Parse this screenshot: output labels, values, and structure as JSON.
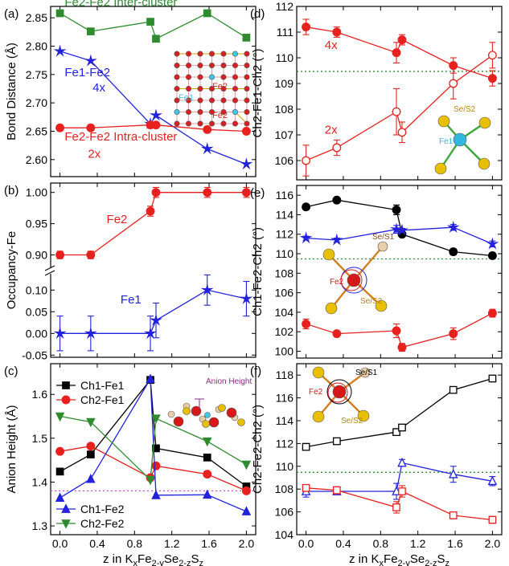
{
  "chart_data": [
    {
      "id": "a",
      "panel_label": "(a)",
      "type": "line",
      "ylabel": "Bond Distance (Å)",
      "ylim": [
        2.57,
        2.87
      ],
      "yticks": [
        "2.60",
        "2.65",
        "2.70",
        "2.75",
        "2.80",
        "2.85"
      ],
      "series": [
        {
          "id": "fe2inter",
          "color": "#2e8b2e",
          "marker": "square",
          "points": [
            [
              0,
              2.858
            ],
            [
              0.33,
              2.826
            ],
            [
              0.97,
              2.843
            ],
            [
              1.03,
              2.813
            ],
            [
              1.58,
              2.858
            ],
            [
              2.0,
              2.815
            ]
          ]
        },
        {
          "id": "fe1fe2",
          "color": "#2222dd",
          "marker": "star",
          "points": [
            [
              0,
              2.791
            ],
            [
              0.33,
              2.774
            ],
            [
              0.97,
              2.663
            ],
            [
              1.03,
              2.678
            ],
            [
              1.58,
              2.619
            ],
            [
              2.0,
              2.592
            ]
          ]
        },
        {
          "id": "fe2intra",
          "color": "#e8201e",
          "marker": "circle",
          "points": [
            [
              0,
              2.656
            ],
            [
              0.33,
              2.656
            ],
            [
              0.97,
              2.661
            ],
            [
              1.03,
              2.661
            ],
            [
              1.58,
              2.653
            ],
            [
              2.0,
              2.65
            ]
          ]
        }
      ],
      "annotations": [
        {
          "text": "Fe2-Fe2 Inter-cluster",
          "color": "#2e8b2e",
          "at": [
            0.05,
            2.871
          ]
        },
        {
          "text": "Fe1-Fe2",
          "color": "#2222dd",
          "at": [
            0.05,
            2.747
          ]
        },
        {
          "text": "4x",
          "color": "#2222dd",
          "at": [
            0.35,
            2.72
          ]
        },
        {
          "text": "Fe2-Fe2 Intra-cluster",
          "color": "#e8201e",
          "at": [
            0.05,
            2.634
          ]
        },
        {
          "text": "2x",
          "color": "#e8201e",
          "at": [
            0.3,
            2.603
          ]
        }
      ],
      "inset": {
        "labels": [
          "Fe2",
          "Fe1",
          "Fe2"
        ]
      }
    },
    {
      "id": "b",
      "panel_label": "(b)",
      "type": "line",
      "ylabel": "Occupancy-Fe",
      "broken_axis": {
        "upper": {
          "ylim": [
            0.875,
            1.015
          ],
          "yticks": [
            "0.90",
            "0.95",
            "1.00"
          ]
        },
        "lower": {
          "ylim": [
            -0.055,
            0.145
          ],
          "yticks": [
            "-0.05",
            "0.00",
            "0.05",
            "0.10"
          ]
        }
      },
      "series": [
        {
          "id": "fe2",
          "color": "#e8201e",
          "marker": "circle",
          "axis": "upper",
          "points": [
            [
              0,
              0.9,
              0.006
            ],
            [
              0.33,
              0.9,
              0.006
            ],
            [
              0.97,
              0.97,
              0.008
            ],
            [
              1.03,
              1.0,
              0.008
            ],
            [
              1.58,
              1.0,
              0.008
            ],
            [
              2.0,
              1.0,
              0.008
            ]
          ]
        },
        {
          "id": "fe1",
          "color": "#2222dd",
          "marker": "star",
          "axis": "lower",
          "points": [
            [
              0,
              0.0,
              0.04
            ],
            [
              0.33,
              0.0,
              0.04
            ],
            [
              0.97,
              0.0,
              0.04
            ],
            [
              1.03,
              0.03,
              0.04
            ],
            [
              1.58,
              0.1,
              0.035
            ],
            [
              2.0,
              0.08,
              0.04
            ]
          ]
        }
      ],
      "annotations": [
        {
          "text": "Fe2",
          "color": "#e8201e",
          "at": [
            0.5,
            0.951
          ],
          "axis": "upper"
        },
        {
          "text": "Fe1",
          "color": "#2222dd",
          "at": [
            0.65,
            0.069
          ],
          "axis": "lower"
        }
      ]
    },
    {
      "id": "c",
      "panel_label": "(c)",
      "type": "line",
      "ylabel": "Anion Height (Å)",
      "xlabel": "z in K",
      "ylim": [
        1.28,
        1.67
      ],
      "yticks": [
        "1.3",
        "1.4",
        "1.5",
        "1.6"
      ],
      "reference_line": 1.38,
      "series": [
        {
          "id": "ch1fe1",
          "name": "Ch1-Fe1",
          "color": "#000000",
          "marker": "square",
          "points": [
            [
              0,
              1.424
            ],
            [
              0.33,
              1.463
            ],
            [
              0.97,
              1.633
            ],
            [
              1.03,
              1.477
            ],
            [
              1.58,
              1.456
            ],
            [
              2.0,
              1.39
            ]
          ]
        },
        {
          "id": "ch2fe1",
          "name": "Ch2-Fe1",
          "color": "#e8201e",
          "marker": "circle",
          "points": [
            [
              0,
              1.47
            ],
            [
              0.33,
              1.482
            ],
            [
              0.97,
              1.41
            ],
            [
              1.03,
              1.437
            ],
            [
              1.58,
              1.418
            ],
            [
              2.0,
              1.38
            ]
          ]
        },
        {
          "id": "ch1fe2",
          "name": "Ch1-Fe2",
          "color": "#2222dd",
          "marker": "triangle-up",
          "points": [
            [
              0,
              1.364
            ],
            [
              0.33,
              1.407
            ],
            [
              0.97,
              1.635
            ],
            [
              1.03,
              1.37
            ],
            [
              1.58,
              1.371
            ],
            [
              2.0,
              1.333
            ]
          ]
        },
        {
          "id": "ch2fe2",
          "name": "Ch2-Fe2",
          "color": "#2e8b2e",
          "marker": "triangle-down",
          "points": [
            [
              0,
              1.55
            ],
            [
              0.33,
              1.537
            ],
            [
              0.97,
              1.405
            ],
            [
              1.03,
              1.545
            ],
            [
              1.58,
              1.493
            ],
            [
              2.0,
              1.44
            ]
          ]
        }
      ],
      "inset": {
        "label": "Anion Height"
      }
    },
    {
      "id": "d",
      "panel_label": "(d)",
      "type": "line",
      "ylabel": "Ch2-Fe1-Ch2 (°)",
      "ylim": [
        105.25,
        112
      ],
      "yticks": [
        "106",
        "107",
        "108",
        "109",
        "110",
        "111",
        "112"
      ],
      "reference_line": 109.47,
      "series": [
        {
          "id": "d4x",
          "color": "#e8201e",
          "marker": "circle",
          "filled": true,
          "points": [
            [
              0,
              111.2,
              0.3
            ],
            [
              0.33,
              111.0,
              0.2
            ],
            [
              0.97,
              110.2,
              0.4
            ],
            [
              1.03,
              110.7,
              0.2
            ],
            [
              1.58,
              109.7,
              0.3
            ],
            [
              2.0,
              109.2,
              0.3
            ]
          ]
        },
        {
          "id": "d2x",
          "color": "#e8201e",
          "marker": "circle",
          "filled": false,
          "points": [
            [
              0,
              106.0,
              0.6
            ],
            [
              0.33,
              106.5,
              0.3
            ],
            [
              0.97,
              107.9,
              0.9
            ],
            [
              1.03,
              107.1,
              0.4
            ],
            [
              1.58,
              109.0,
              0.6
            ],
            [
              2.0,
              110.1,
              0.5
            ]
          ]
        }
      ],
      "annotations": [
        {
          "text": "4x",
          "color": "#e8201e",
          "at": [
            0.2,
            110.35
          ]
        },
        {
          "text": "2x",
          "color": "#e8201e",
          "at": [
            0.2,
            107.05
          ]
        }
      ],
      "inset": {
        "labels": [
          "Se/S2",
          "Fe1"
        ]
      }
    },
    {
      "id": "e",
      "panel_label": "(e)",
      "type": "line",
      "ylabel": "Ch1-Fe2-Ch2 (°)",
      "ylim": [
        99.3,
        117
      ],
      "yticks": [
        "100",
        "102",
        "104",
        "106",
        "108",
        "110",
        "112",
        "114",
        "116"
      ],
      "reference_line": 109.47,
      "series": [
        {
          "id": "e_black",
          "color": "#000000",
          "marker": "circle",
          "points": [
            [
              0,
              114.8,
              0.2
            ],
            [
              0.33,
              115.5,
              0.2
            ],
            [
              0.97,
              114.5,
              0.5
            ],
            [
              1.03,
              112.0,
              0.2
            ],
            [
              1.58,
              110.2,
              0.3
            ],
            [
              2.0,
              109.8,
              0.3
            ]
          ]
        },
        {
          "id": "e_blue",
          "color": "#2222dd",
          "marker": "star",
          "points": [
            [
              0,
              111.6,
              0.2
            ],
            [
              0.33,
              111.4,
              0.2
            ],
            [
              0.97,
              112.5,
              0.4
            ],
            [
              1.03,
              112.4,
              0.2
            ],
            [
              1.58,
              112.7,
              0.3
            ],
            [
              2.0,
              111.0,
              0.3
            ]
          ]
        },
        {
          "id": "e_red",
          "color": "#e8201e",
          "marker": "circle",
          "points": [
            [
              0,
              102.8,
              0.5
            ],
            [
              0.33,
              101.8,
              0.2
            ],
            [
              0.97,
              102.1,
              0.7
            ],
            [
              1.03,
              100.4,
              0.4
            ],
            [
              1.58,
              101.8,
              0.6
            ],
            [
              2.0,
              103.9,
              0.4
            ]
          ]
        }
      ],
      "inset": {
        "labels": [
          "Se/S1",
          "Fe2",
          "Se/S2"
        ]
      }
    },
    {
      "id": "f",
      "panel_label": "(f)",
      "type": "line",
      "ylabel": "Ch2-Fe2-Ch2 (°)",
      "xlabel": "z in K",
      "ylim": [
        104,
        119
      ],
      "yticks": [
        "104",
        "106",
        "108",
        "110",
        "112",
        "114",
        "116",
        "118"
      ],
      "reference_line": 109.47,
      "series": [
        {
          "id": "f_black",
          "color": "#000000",
          "marker": "square",
          "filled": false,
          "points": [
            [
              0,
              111.7,
              0.3
            ],
            [
              0.33,
              112.2,
              0.2
            ],
            [
              0.97,
              113.0,
              0.3
            ],
            [
              1.03,
              113.4,
              0.2
            ],
            [
              1.58,
              116.7,
              0.2
            ],
            [
              2.0,
              117.7,
              0.2
            ]
          ]
        },
        {
          "id": "f_blue",
          "color": "#2222dd",
          "marker": "triangle-up",
          "filled": false,
          "points": [
            [
              0,
              107.8,
              0.5
            ],
            [
              0.33,
              107.8,
              0.3
            ],
            [
              0.97,
              107.8,
              0.7
            ],
            [
              1.03,
              110.3,
              0.3
            ],
            [
              1.58,
              109.3,
              0.7
            ],
            [
              2.0,
              108.7,
              0.4
            ]
          ]
        },
        {
          "id": "f_red",
          "color": "#e8201e",
          "marker": "square",
          "filled": false,
          "points": [
            [
              0,
              108.1,
              0.3
            ],
            [
              0.33,
              107.9,
              0.3
            ],
            [
              0.97,
              106.4,
              0.5
            ],
            [
              1.03,
              107.8,
              0.5
            ],
            [
              1.58,
              105.7,
              0.3
            ],
            [
              2.0,
              105.3,
              0.3
            ]
          ]
        }
      ],
      "inset": {
        "labels": [
          "Se/S1",
          "Fe2",
          "Se/S2"
        ]
      }
    }
  ],
  "xaxis": {
    "xlim": [
      -0.1,
      2.1
    ],
    "xticks": [
      "0.0",
      "0.4",
      "0.8",
      "1.2",
      "1.6",
      "2.0"
    ],
    "label_subscripts": [
      "x",
      "2-y",
      "2-z",
      "z"
    ],
    "label_parts": [
      "Fe",
      "Se",
      "S"
    ]
  },
  "colors": {
    "red": "#e8201e",
    "blue": "#2222dd",
    "green": "#2e8b2e",
    "black": "#000000",
    "reference": "#2e8b2e",
    "reference_c": "#d050d0"
  }
}
